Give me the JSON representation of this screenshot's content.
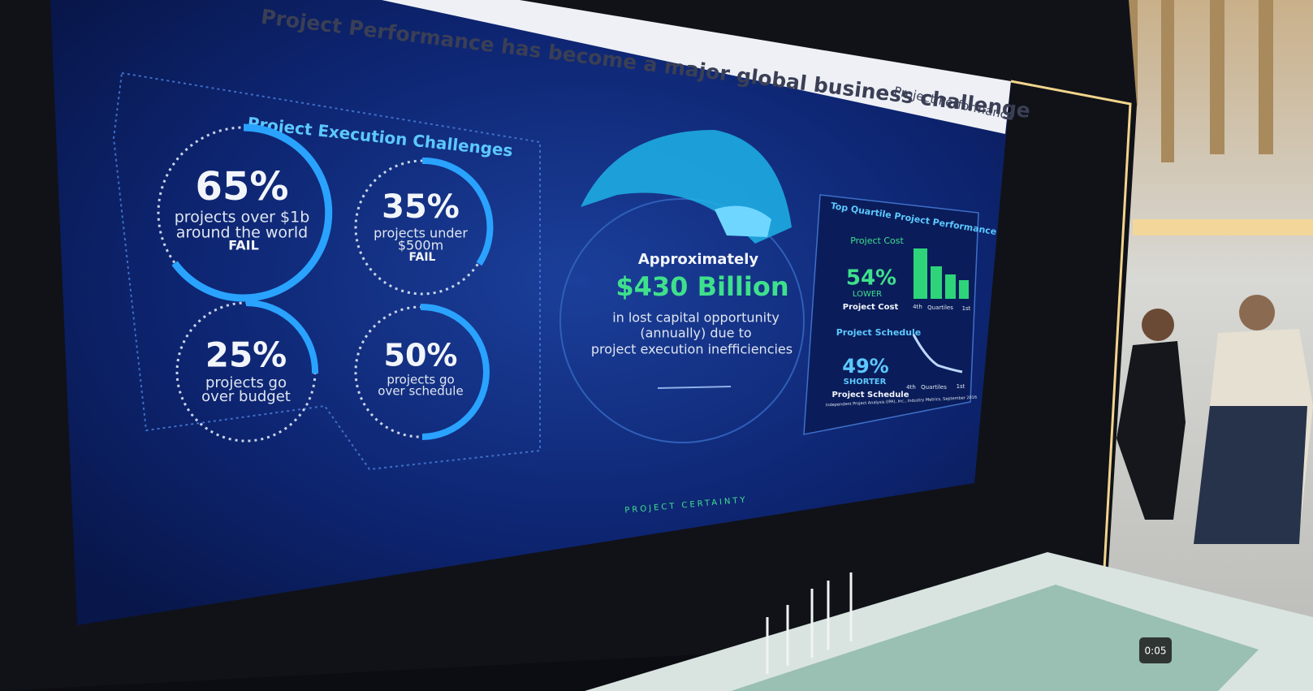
{
  "header": {
    "title": "Project Performance has become a major global business challenge",
    "tag": "Project Performance"
  },
  "challenges": {
    "title": "Project Execution Challenges",
    "items": [
      {
        "value": "65%",
        "lines": [
          "projects over $1b",
          "around the world",
          "FAIL"
        ]
      },
      {
        "value": "35%",
        "lines": [
          "projects under",
          "$500m",
          "FAIL"
        ]
      },
      {
        "value": "25%",
        "lines": [
          "projects go",
          "over budget"
        ]
      },
      {
        "value": "50%",
        "lines": [
          "projects go",
          "over schedule"
        ]
      }
    ]
  },
  "center": {
    "lead": "Approximately",
    "amount": "$430 Billion",
    "lines": [
      "in lost capital opportunity",
      "(annually) due to",
      "project execution inefficiencies"
    ]
  },
  "top_quartile": {
    "title": "Top Quartile Project Performance",
    "cost": {
      "label": "Project Cost",
      "value": "54%",
      "qualifier": "LOWER",
      "caption": "Project Cost",
      "axis": [
        "4th",
        "Quartiles",
        "1st"
      ]
    },
    "schedule": {
      "label": "Project Schedule",
      "value": "49%",
      "qualifier": "SHORTER",
      "caption": "Project Schedule",
      "axis": [
        "4th",
        "Quartiles",
        "1st"
      ]
    },
    "source": "Independent Project Analysis (IPA), Inc., Industry Metrics, September 2016"
  },
  "footer": "PROJECT CERTAINTY",
  "player": {
    "time": "0:05"
  }
}
